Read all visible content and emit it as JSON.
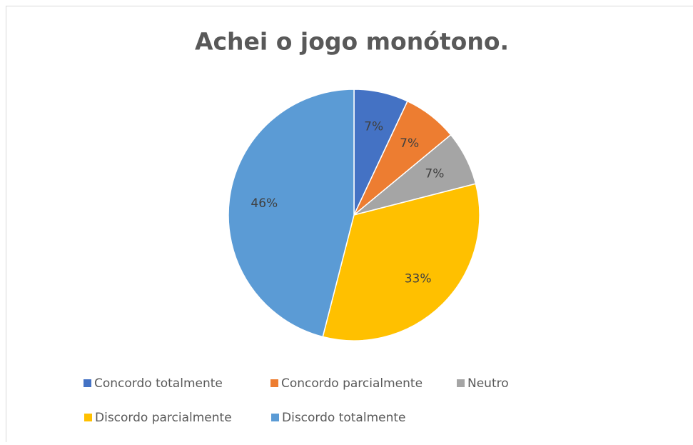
{
  "chart_data": {
    "type": "pie",
    "title": "Achei o jogo monótono.",
    "categories": [
      "Concordo totalmente",
      "Concordo parcialmente",
      "Neutro",
      "Discordo parcialmente",
      "Discordo totalmente"
    ],
    "values": [
      7,
      7,
      7,
      33,
      46
    ],
    "value_labels": [
      "7%",
      "7%",
      "7%",
      "33%",
      "46%"
    ],
    "colors": [
      "#4472c4",
      "#ed7d31",
      "#a5a5a5",
      "#ffc000",
      "#5b9bd5"
    ],
    "legend": "bottom"
  }
}
